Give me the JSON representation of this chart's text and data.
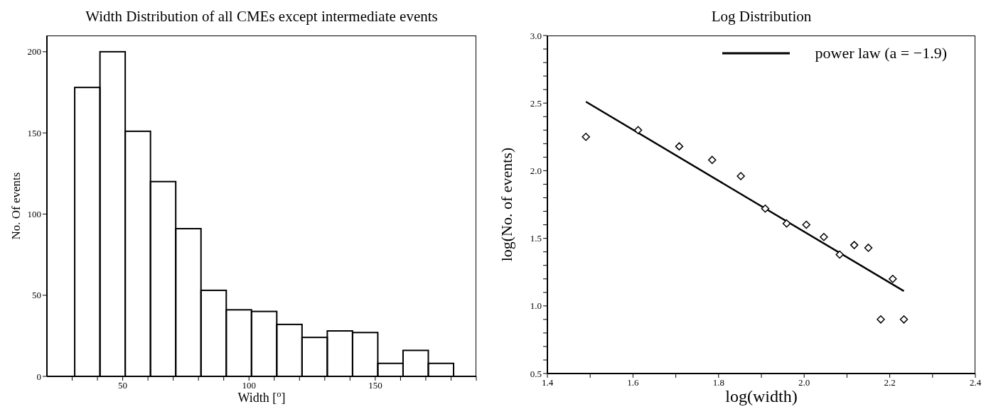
{
  "chart_data": [
    {
      "type": "histogram",
      "title": "Width Distribution of all CMEs except intermediate events",
      "xlabel": "Width [$^{o}$]",
      "ylabel": "No. Of events",
      "bins": [
        31,
        41,
        51,
        61,
        71,
        81,
        91,
        101,
        111,
        121,
        131,
        141,
        151,
        161,
        171,
        181
      ],
      "values": [
        178,
        200,
        151,
        120,
        91,
        53,
        41,
        40,
        32,
        24,
        28,
        27,
        8,
        16,
        8
      ],
      "color": "#000000",
      "xlim": [
        20,
        190
      ],
      "xticks": [
        {
          "value": 30,
          "label": null
        },
        {
          "value": 40,
          "label": null
        },
        50,
        {
          "value": 60,
          "label": null
        },
        {
          "value": 70,
          "label": null
        },
        {
          "value": 80,
          "label": null
        },
        {
          "value": 90,
          "label": null
        },
        100,
        {
          "value": 110,
          "label": null
        },
        {
          "value": 120,
          "label": null
        },
        {
          "value": 130,
          "label": null
        },
        {
          "value": 140,
          "label": null
        },
        150,
        {
          "value": 160,
          "label": null
        },
        {
          "value": 170,
          "label": null
        },
        {
          "value": 180,
          "label": null
        },
        {
          "value": 190,
          "label": null
        }
      ],
      "ylim": [
        0,
        210
      ],
      "yticks": [
        0,
        50,
        100,
        150,
        200
      ],
      "grid": false,
      "legend": false
    },
    {
      "type": "scatter",
      "title": "Log Distribution",
      "xlabel": "log(width)",
      "ylabel": "log(No. of events)",
      "marker": "diamond",
      "legend": "top right",
      "grid": false,
      "series": [
        {
          "type": "scatter",
          "color": "#000000",
          "x": [
            1.49,
            1.612,
            1.708,
            1.785,
            1.852,
            1.909,
            1.959,
            2.005,
            2.046,
            2.083,
            2.117,
            2.15,
            2.179,
            2.207,
            2.233
          ],
          "values": [
            2.25,
            2.3,
            2.18,
            2.08,
            1.96,
            1.72,
            1.61,
            1.6,
            1.51,
            1.38,
            1.45,
            1.43,
            0.9,
            1.2,
            0.9
          ]
        },
        {
          "type": "line",
          "name": "power law (a = −1.9)",
          "color": "#000000",
          "marker": "none",
          "line_style": "solid",
          "x": [
            1.49,
            2.233
          ],
          "values": [
            2.51,
            1.11
          ]
        }
      ],
      "xlim": [
        1.4,
        2.4
      ],
      "xticks": [
        {
          "value": 1.4,
          "label": "1.4"
        },
        {
          "value": 1.5,
          "label": null
        },
        {
          "value": 1.6,
          "label": "1.6"
        },
        {
          "value": 1.7,
          "label": null
        },
        {
          "value": 1.8,
          "label": "1.8"
        },
        {
          "value": 1.9,
          "label": null
        },
        {
          "value": 2.0,
          "label": "2.0"
        },
        {
          "value": 2.1,
          "label": null
        },
        {
          "value": 2.2,
          "label": "2.2"
        },
        {
          "value": 2.3,
          "label": null
        },
        {
          "value": 2.4,
          "label": "2.4"
        }
      ],
      "ylim": [
        0.5,
        3.0
      ],
      "yticks": [
        {
          "value": 0.5,
          "label": "0.5"
        },
        {
          "value": 0.6,
          "label": null
        },
        {
          "value": 0.7,
          "label": null
        },
        {
          "value": 0.8,
          "label": null
        },
        {
          "value": 0.9,
          "label": null
        },
        {
          "value": 1.0,
          "label": "1.0"
        },
        {
          "value": 1.1,
          "label": null
        },
        {
          "value": 1.2,
          "label": null
        },
        {
          "value": 1.3,
          "label": null
        },
        {
          "value": 1.4,
          "label": null
        },
        {
          "value": 1.5,
          "label": "1.5"
        },
        {
          "value": 1.6,
          "label": null
        },
        {
          "value": 1.7,
          "label": null
        },
        {
          "value": 1.8,
          "label": null
        },
        {
          "value": 1.9,
          "label": null
        },
        {
          "value": 2.0,
          "label": "2.0"
        },
        {
          "value": 2.1,
          "label": null
        },
        {
          "value": 2.2,
          "label": null
        },
        {
          "value": 2.3,
          "label": null
        },
        {
          "value": 2.4,
          "label": null
        },
        {
          "value": 2.5,
          "label": "2.5"
        },
        {
          "value": 2.6,
          "label": null
        },
        {
          "value": 2.7,
          "label": null
        },
        {
          "value": 2.8,
          "label": null
        },
        {
          "value": 2.9,
          "label": null
        },
        {
          "value": 3.0,
          "label": "3.0"
        }
      ]
    }
  ]
}
